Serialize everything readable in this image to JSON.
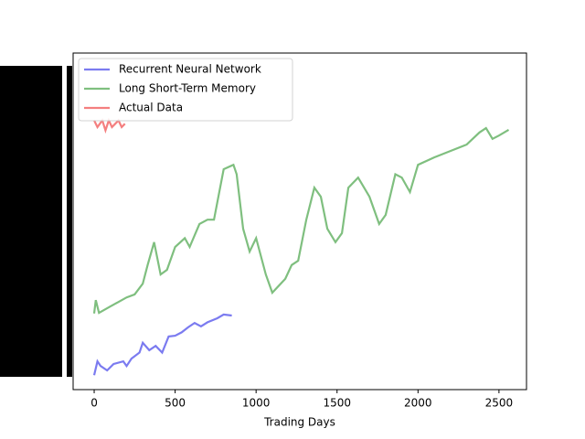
{
  "chart_data": {
    "type": "line",
    "x_label": "Trading Days",
    "xlim": [
      -130,
      2670
    ],
    "xticks": [
      0,
      500,
      1000,
      1500,
      2000,
      2500
    ],
    "ylim": [
      0,
      100
    ],
    "legend": "upper left",
    "series": [
      {
        "name": "Recurrent Neural Network",
        "color": "#7b7bf0",
        "x": [
          0,
          20,
          40,
          80,
          120,
          180,
          200,
          230,
          280,
          300,
          340,
          380,
          420,
          460,
          500,
          540,
          580,
          620,
          660,
          700,
          760,
          800,
          850
        ],
        "values": [
          4.3,
          8.4,
          7,
          5.7,
          7.6,
          8.4,
          7,
          9.2,
          11,
          13.9,
          11.7,
          13,
          11,
          15.8,
          16,
          17,
          18.5,
          19.8,
          18.8,
          20,
          21.2,
          22.3,
          22
        ]
      },
      {
        "name": "Long Short-Term Memory",
        "color": "#7fbf7f",
        "x": [
          0,
          10,
          30,
          100,
          200,
          250,
          300,
          330,
          370,
          410,
          450,
          500,
          560,
          590,
          650,
          700,
          740,
          800,
          860,
          880,
          920,
          960,
          1000,
          1060,
          1100,
          1180,
          1220,
          1260,
          1310,
          1360,
          1400,
          1440,
          1490,
          1530,
          1570,
          1630,
          1700,
          1760,
          1800,
          1860,
          1900,
          1950,
          2000,
          2100,
          2200,
          2300,
          2380,
          2420,
          2460,
          2500,
          2560
        ],
        "values": [
          22.6,
          26.6,
          22.8,
          24.7,
          27.4,
          28.3,
          31.5,
          37,
          43.8,
          34.2,
          35.6,
          42.4,
          45,
          42.4,
          49.2,
          50.5,
          50.5,
          65.5,
          66.8,
          64,
          47.8,
          41,
          45,
          34.2,
          28.8,
          32.9,
          37,
          38.3,
          50.5,
          60,
          57.3,
          47.8,
          43.8,
          46.5,
          60,
          63,
          57.3,
          49.2,
          51.9,
          64,
          63,
          58.7,
          66.8,
          69,
          70.9,
          72.8,
          76.4,
          77.7,
          74.5,
          75.5,
          77.2
        ]
      },
      {
        "name": "Actual Data",
        "color": "#f47f7f",
        "x": [
          0,
          20,
          50,
          70,
          90,
          110,
          130,
          150,
          170,
          190
        ],
        "values": [
          80,
          78,
          80,
          77,
          80,
          78,
          79,
          80,
          78,
          79
        ]
      }
    ]
  }
}
